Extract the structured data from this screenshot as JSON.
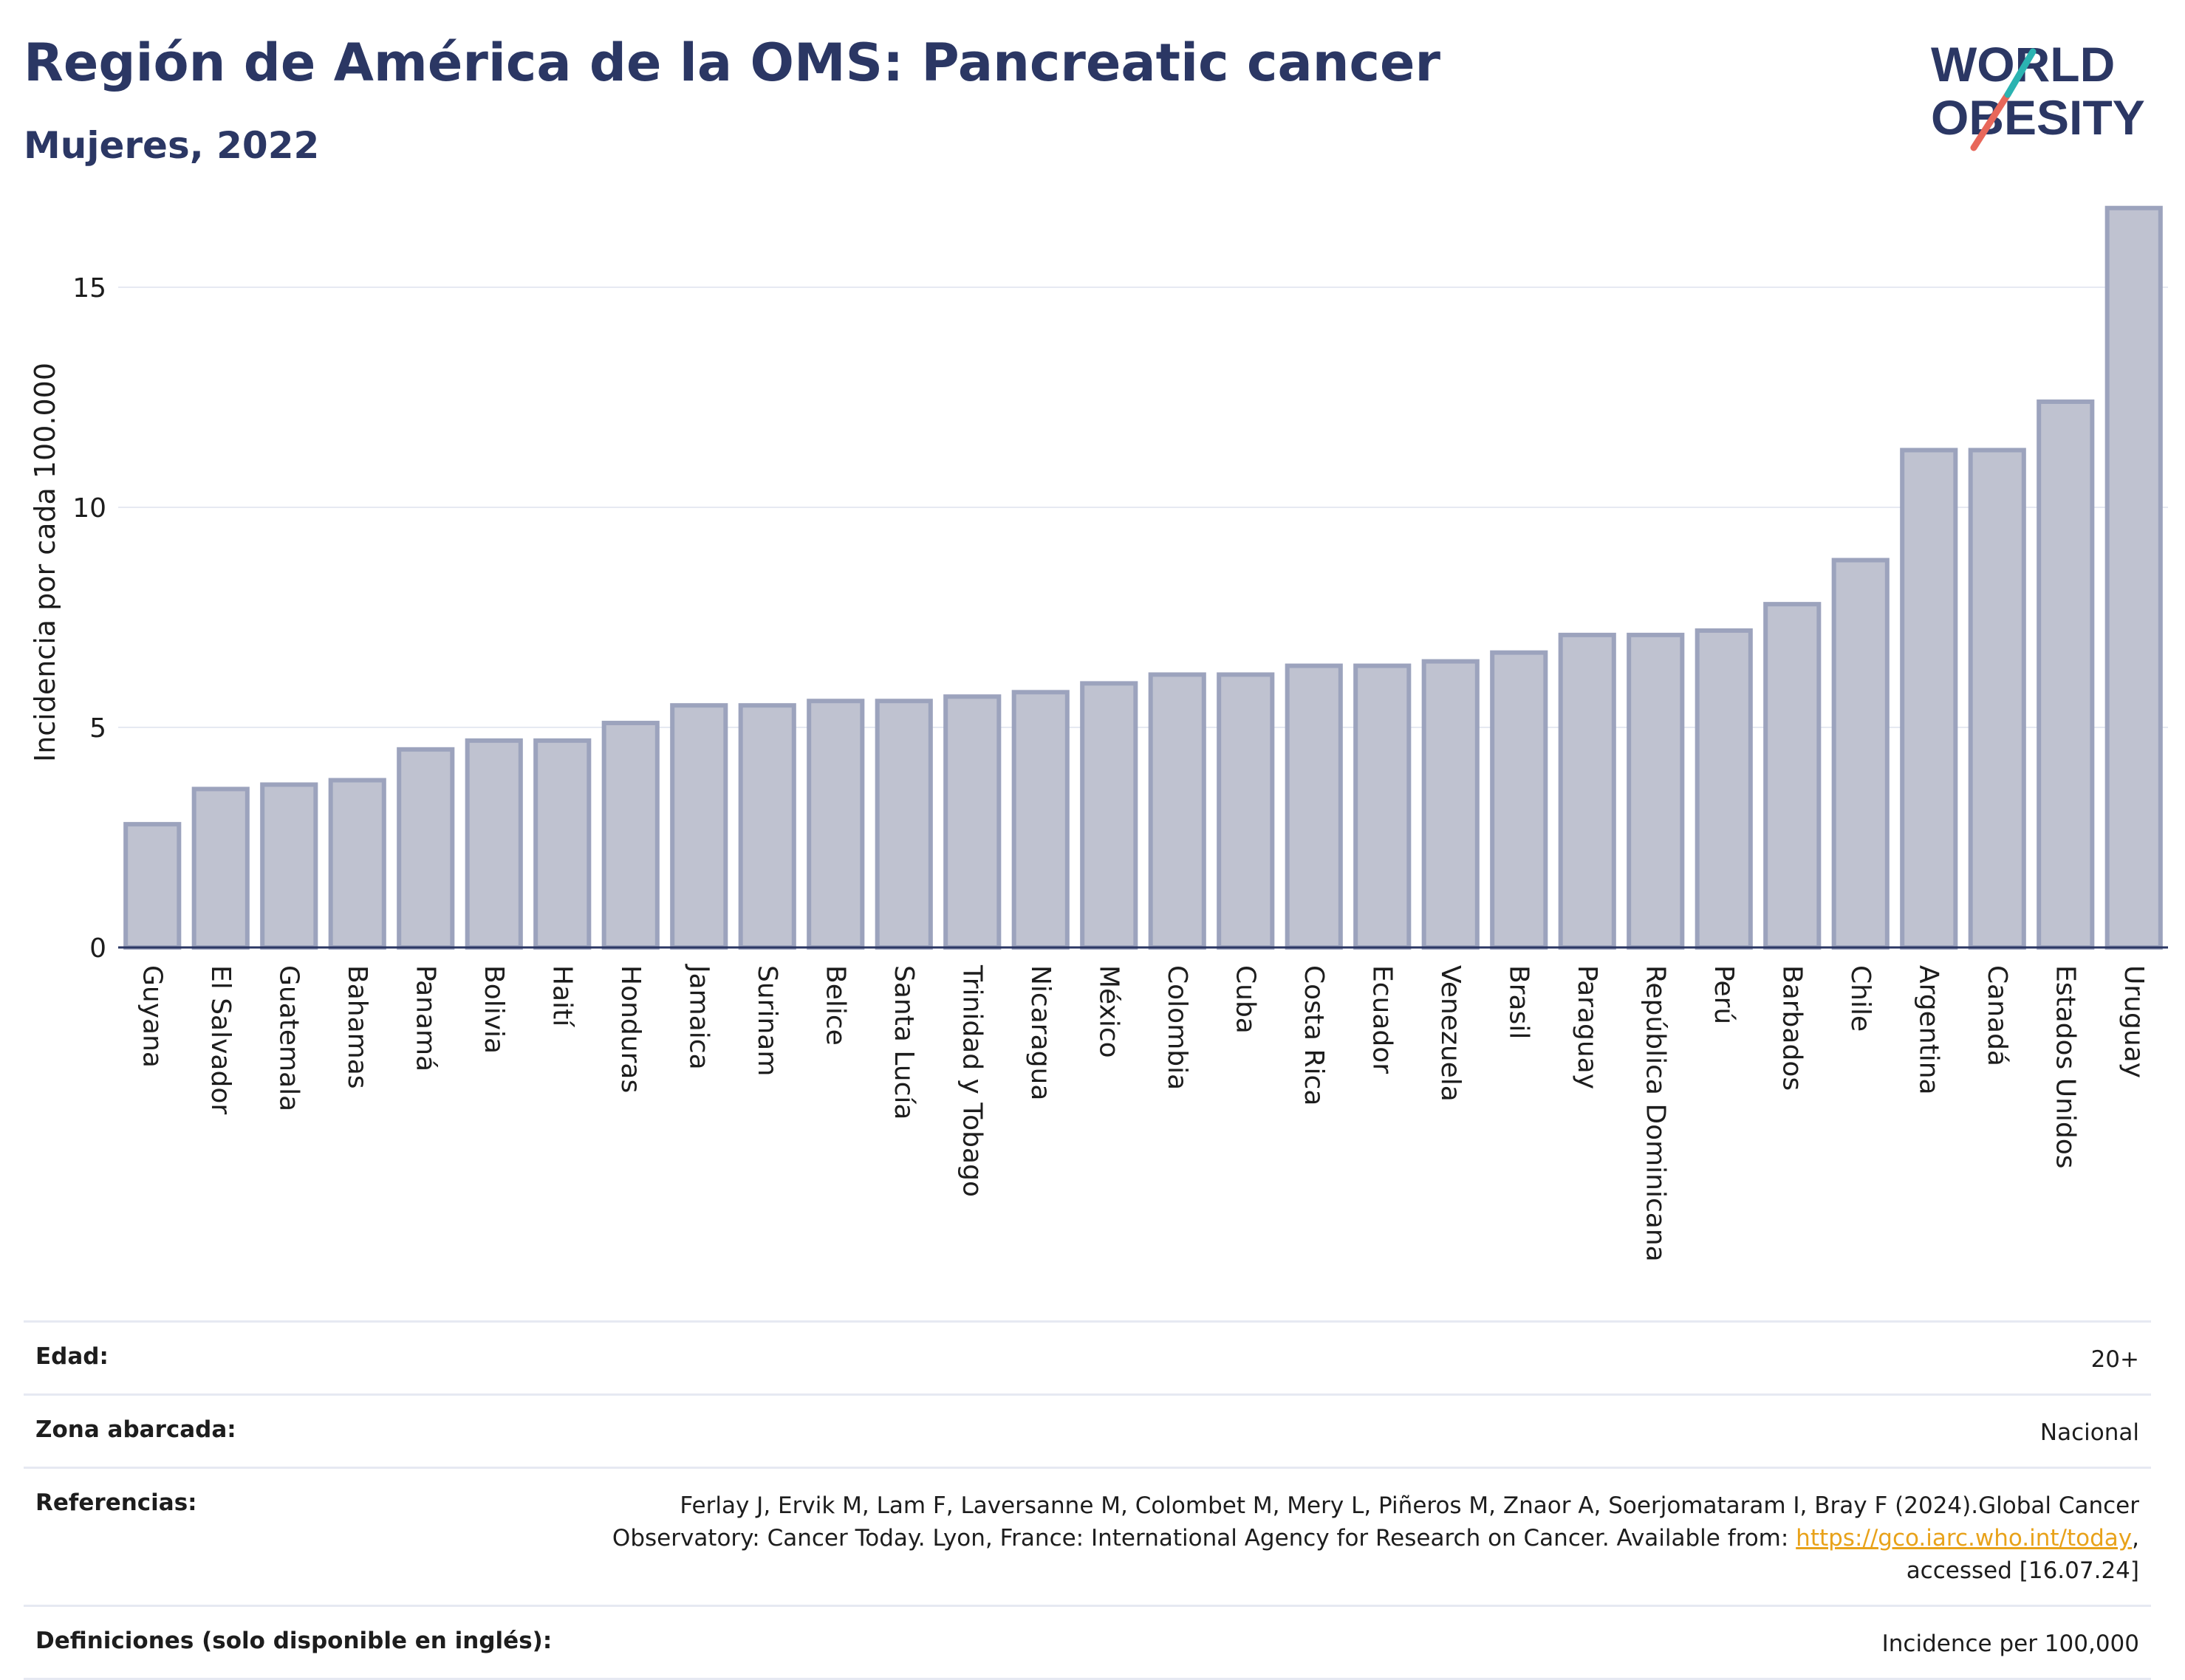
{
  "header": {
    "title": "Región de América de la OMS: Pancreatic cancer",
    "subtitle": "Mujeres, 2022"
  },
  "logo": {
    "line1": "WORLD",
    "line2": "OBESITY",
    "colors": {
      "text": "#2b3764",
      "slash_teal": "#2bb3b1",
      "slash_red": "#e8675a"
    }
  },
  "chart_data": {
    "type": "bar",
    "title": "",
    "xlabel": "",
    "ylabel": "Incidencia por cada 100.000",
    "ylim": [
      0,
      17.5
    ],
    "yticks": [
      0,
      5,
      10,
      15
    ],
    "grid": true,
    "bar_color": "#bfc2d0",
    "bar_edge_color": "#9ca3bd",
    "categories": [
      "Guyana",
      "El Salvador",
      "Guatemala",
      "Bahamas",
      "Panamá",
      "Bolivia",
      "Haití",
      "Honduras",
      "Jamaica",
      "Surinam",
      "Belice",
      "Santa Lucía",
      "Trinidad y Tobago",
      "Nicaragua",
      "México",
      "Colombia",
      "Cuba",
      "Costa Rica",
      "Ecuador",
      "Venezuela",
      "Brasil",
      "Paraguay",
      "República Dominicana",
      "Perú",
      "Barbados",
      "Chile",
      "Argentina",
      "Canadá",
      "Estados Unidos",
      "Uruguay"
    ],
    "values": [
      2.8,
      3.6,
      3.7,
      3.8,
      4.5,
      4.7,
      4.7,
      5.1,
      5.5,
      5.5,
      5.6,
      5.6,
      5.7,
      5.8,
      6.0,
      6.2,
      6.2,
      6.4,
      6.4,
      6.5,
      6.7,
      7.1,
      7.1,
      7.2,
      7.8,
      8.8,
      11.3,
      11.3,
      12.4,
      16.8
    ]
  },
  "meta": {
    "age_label": "Edad:",
    "age_value": "20+",
    "area_label": "Zona abarcada:",
    "area_value": "Nacional",
    "refs_label": "Referencias:",
    "refs_text": "Ferlay J, Ervik M, Lam F, Laversanne M, Colombet M, Mery L, Piñeros M, Znaor A, Soerjomataram I, Bray F (2024).Global Cancer Observatory: Cancer Today. Lyon, France: International Agency for Research on Cancer. Available from:",
    "refs_link": "https://gco.iarc.who.int/today",
    "refs_tail": ", accessed [16.07.24]",
    "defs_label": "Definiciones (solo disponible en inglés):",
    "defs_value": "Incidence per 100,000"
  }
}
